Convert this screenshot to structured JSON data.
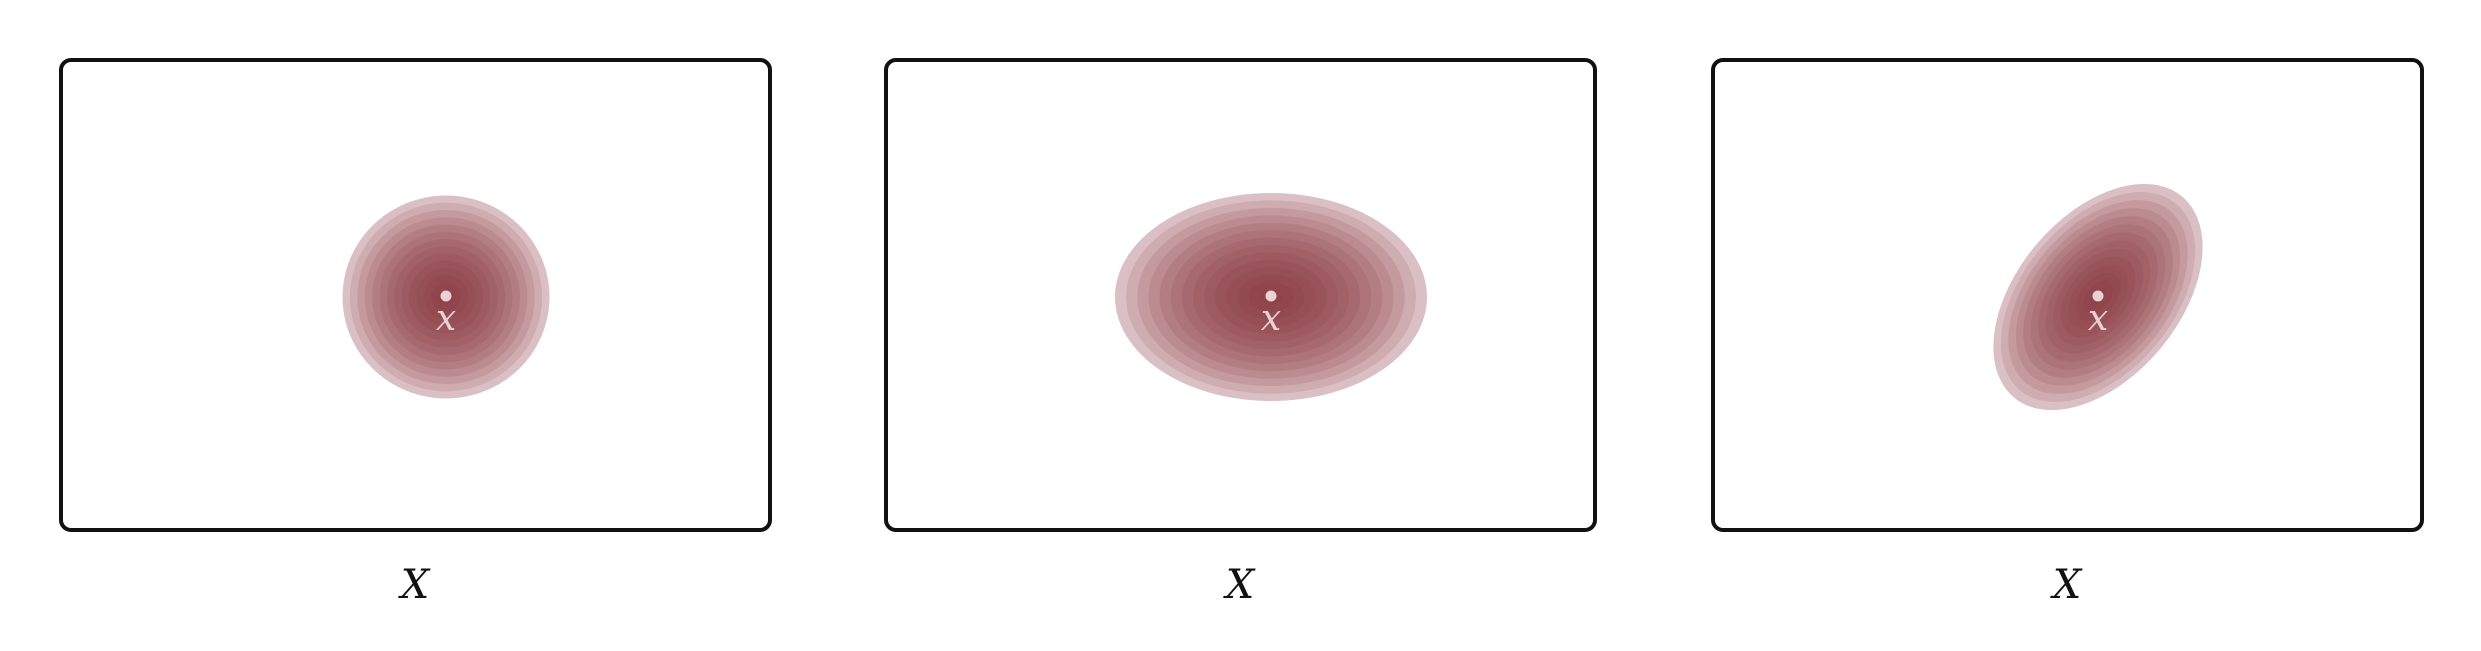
{
  "colors": {
    "contour": "#85303a",
    "marker": "#e8d2d4",
    "border": "#111111"
  },
  "panels": [
    {
      "variant": "isotropic",
      "point_label": "x",
      "space_label": "X",
      "covariance": {
        "sx": 1.0,
        "sy": 1.0,
        "angle_deg": 0
      }
    },
    {
      "variant": "axis-aligned-anisotropic",
      "point_label": "x",
      "space_label": "X",
      "covariance": {
        "sx": 1.5,
        "sy": 1.0,
        "angle_deg": 0
      }
    },
    {
      "variant": "correlated",
      "point_label": "x",
      "space_label": "X",
      "covariance": {
        "sx": 1.5,
        "sy": 0.8,
        "angle_deg": -50
      }
    }
  ]
}
